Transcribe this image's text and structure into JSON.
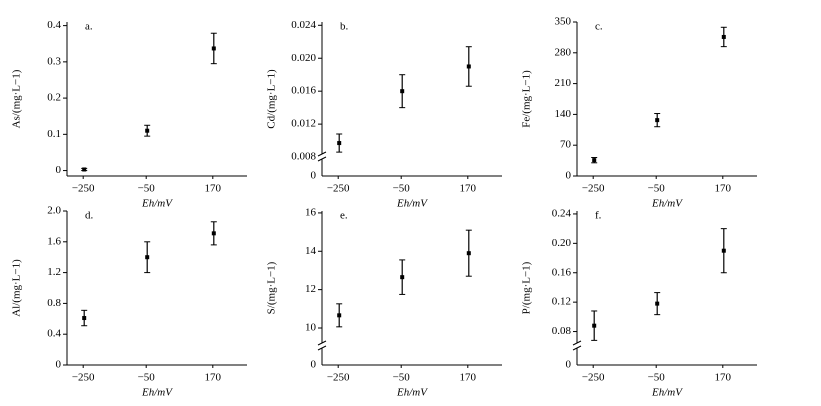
{
  "chart_data": [
    {
      "type": "scatter",
      "label": "a.",
      "y_label": "As/(mg·L−1)",
      "x_label": "Eh/mV",
      "categories": [
        "−250",
        "−50",
        "170"
      ],
      "values": [
        0.003,
        0.11,
        0.337
      ],
      "errors": [
        0.003,
        0.015,
        0.042
      ],
      "ylim": [
        -0.015,
        0.41
      ],
      "yticks": [
        0,
        0.1,
        0.2,
        0.3,
        0.4
      ],
      "color": "#000000"
    },
    {
      "type": "scatter",
      "label": "b.",
      "y_label": "Cd/(mg·L−1)",
      "x_label": "Eh/mV",
      "categories": [
        "−250",
        "−50",
        "170"
      ],
      "values": [
        0.0097,
        0.016,
        0.019
      ],
      "errors": [
        0.0011,
        0.002,
        0.0024
      ],
      "ylim": [
        0.0057,
        0.0244
      ],
      "yticks": [
        0.008,
        0.012,
        0.016,
        {
          "value": 0.02,
          "label": "0.020"
        },
        0.024
      ],
      "y_break_tick": 0,
      "color": "#000000"
    },
    {
      "type": "scatter",
      "label": "c.",
      "y_label": "Fe/(mg·L−1)",
      "x_label": "Eh/mV",
      "categories": [
        "−250",
        "−50",
        "170"
      ],
      "values": [
        36,
        127,
        316
      ],
      "errors": [
        6,
        15,
        22
      ],
      "ylim": [
        0,
        350
      ],
      "yticks": [
        0,
        70,
        140,
        210,
        280,
        350
      ],
      "color": "#000000"
    },
    {
      "type": "scatter",
      "label": "d.",
      "y_label": "Al/(mg·L−1)",
      "x_label": "Eh/mV",
      "categories": [
        "−250",
        "−50",
        "170"
      ],
      "values": [
        0.61,
        1.4,
        1.71
      ],
      "errors": [
        0.1,
        0.2,
        0.15
      ],
      "ylim": [
        0,
        2.0
      ],
      "yticks": [
        0,
        0.4,
        0.8,
        1.2,
        1.6,
        {
          "value": 2.0,
          "label": "2.0"
        }
      ],
      "color": "#000000"
    },
    {
      "type": "scatter",
      "label": "e.",
      "y_label": "S/(mg·L−1)",
      "x_label": "Eh/mV",
      "categories": [
        "−250",
        "−50",
        "170"
      ],
      "values": [
        10.66,
        12.65,
        13.9
      ],
      "errors": [
        0.6,
        0.9,
        1.2
      ],
      "ylim": [
        8.07,
        16.1
      ],
      "yticks": [
        10,
        12,
        14,
        16
      ],
      "y_break_tick": 0,
      "color": "#000000"
    },
    {
      "type": "scatter",
      "label": "f.",
      "y_label": "P/(mg·L−1)",
      "x_label": "Eh/mV",
      "categories": [
        "−250",
        "−50",
        "170"
      ],
      "values": [
        0.088,
        0.118,
        0.19
      ],
      "errors": [
        0.02,
        0.015,
        0.03
      ],
      "ylim": [
        0.0345,
        0.244
      ],
      "yticks": [
        0.08,
        0.12,
        0.16,
        {
          "value": 0.2,
          "label": "0.20"
        },
        0.24
      ],
      "y_break_tick": 0,
      "color": "#000000"
    }
  ]
}
